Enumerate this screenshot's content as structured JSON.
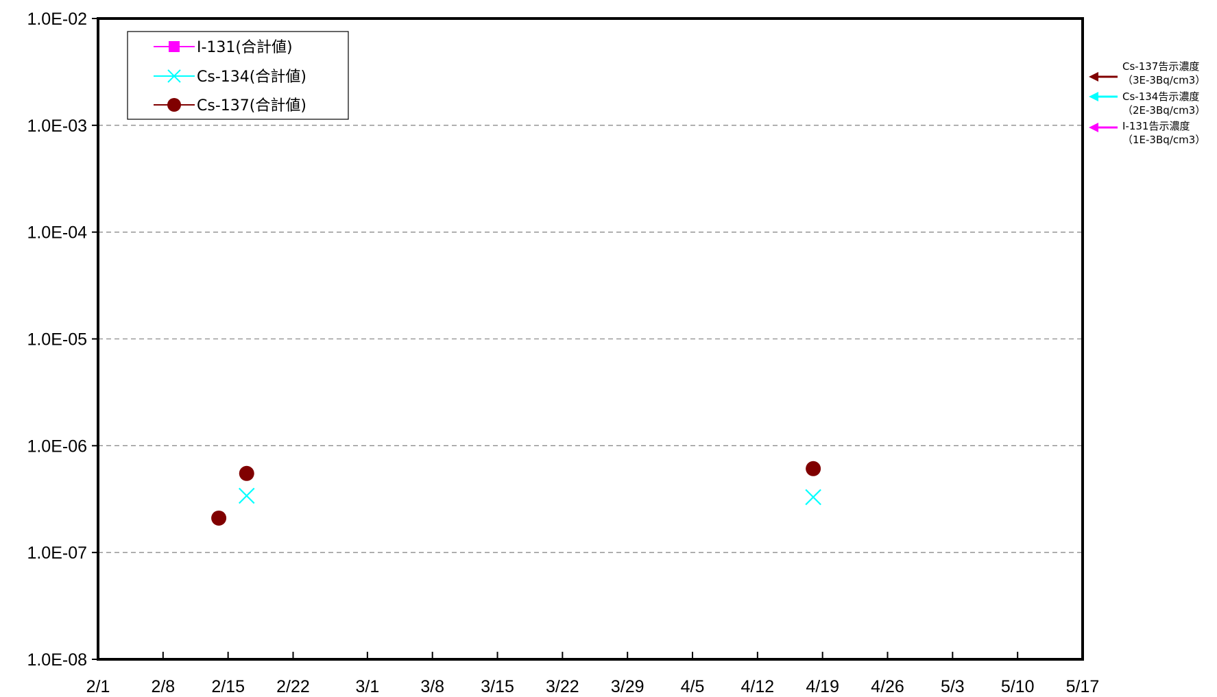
{
  "chart_data": {
    "type": "scatter",
    "title": "",
    "xlabel": "",
    "ylabel": "",
    "y_scale": "log",
    "ylim": [
      1e-08,
      0.01
    ],
    "xlim": [
      "2/1",
      "5/17"
    ],
    "grid": "horizontal dashed",
    "legend_position": "top-left",
    "x_ticks": [
      "2/1",
      "2/8",
      "2/15",
      "2/22",
      "3/1",
      "3/8",
      "3/15",
      "3/22",
      "3/29",
      "4/5",
      "4/12",
      "4/19",
      "4/26",
      "5/3",
      "5/10",
      "5/17"
    ],
    "y_ticks": [
      {
        "value": 0.01,
        "label": "1.0E-02"
      },
      {
        "value": 0.001,
        "label": "1.0E-03"
      },
      {
        "value": 0.0001,
        "label": "1.0E-04"
      },
      {
        "value": 1e-05,
        "label": "1.0E-05"
      },
      {
        "value": 1e-06,
        "label": "1.0E-06"
      },
      {
        "value": 1e-07,
        "label": "1.0E-07"
      },
      {
        "value": 1e-08,
        "label": "1.0E-08"
      }
    ],
    "series": [
      {
        "name": "I-131(合計値)",
        "marker": "square",
        "color": "#ff00ff",
        "points": []
      },
      {
        "name": "Cs-134(合計値)",
        "marker": "x",
        "color": "#00ffff",
        "points": [
          {
            "x": "2/17",
            "y": 3.4e-07
          },
          {
            "x": "4/18",
            "y": 3.3e-07
          }
        ]
      },
      {
        "name": "Cs-137(合計値)",
        "marker": "circle",
        "color": "#800000",
        "points": [
          {
            "x": "2/14",
            "y": 2.1e-07
          },
          {
            "x": "2/17",
            "y": 5.5e-07
          },
          {
            "x": "4/18",
            "y": 6.1e-07
          }
        ]
      }
    ],
    "reference_lines": [
      {
        "label": "Cs-137告示濃度",
        "sublabel": "（3E-3Bq/cm3）",
        "value": 0.003,
        "color": "#800000"
      },
      {
        "label": "Cs-134告示濃度",
        "sublabel": "（2E-3Bq/cm3）",
        "value": 0.002,
        "color": "#00ffff"
      },
      {
        "label": "I-131告示濃度",
        "sublabel": "（1E-3Bq/cm3）",
        "value": 0.001,
        "color": "#ff00ff"
      }
    ]
  }
}
